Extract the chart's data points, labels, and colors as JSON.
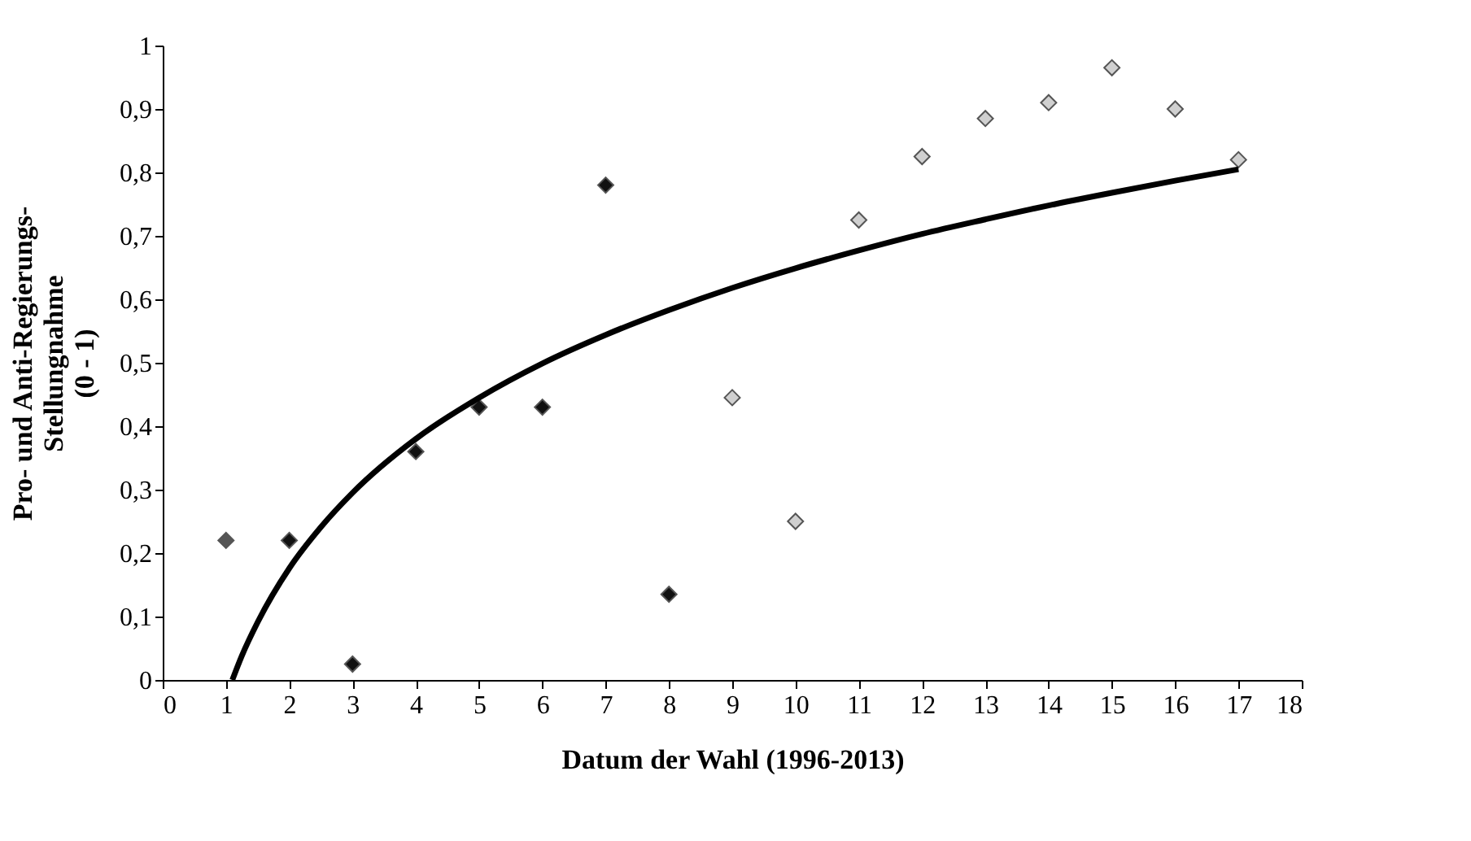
{
  "chart_data": {
    "type": "scatter",
    "xlabel": "Datum der Wahl (1996-2013)",
    "ylabel": "Pro- und Anti-Regierungs-\nStellungnahme\n(0 - 1)",
    "xlim": [
      0,
      18
    ],
    "xticks": [
      0,
      1,
      2,
      3,
      4,
      5,
      6,
      7,
      8,
      9,
      10,
      11,
      12,
      13,
      14,
      15,
      16,
      17,
      18
    ],
    "ylim": [
      0,
      1
    ],
    "yticks": [
      0,
      {
        "value": 0.1,
        "label": "0,1"
      },
      {
        "value": 0.2,
        "label": "0,2"
      },
      {
        "value": 0.3,
        "label": "0,3"
      },
      {
        "value": 0.4,
        "label": "0,4"
      },
      {
        "value": 0.5,
        "label": "0,5"
      },
      {
        "value": 0.6,
        "label": "0,6"
      },
      {
        "value": 0.7,
        "label": "0,7"
      },
      {
        "value": 0.8,
        "label": "0,8"
      },
      {
        "value": 0.9,
        "label": "0,9"
      },
      1
    ],
    "grid": false,
    "marker": "diamond",
    "series": [
      {
        "color": "#555555",
        "x": [
          1
        ],
        "values": [
          0.22
        ]
      },
      {
        "color": "#111111",
        "x": [
          2,
          3,
          4,
          5,
          6,
          7,
          8
        ],
        "values": [
          0.22,
          0.025,
          0.36,
          0.43,
          0.43,
          0.78,
          0.135
        ]
      },
      {
        "color": "#d0d0d0",
        "x": [
          9,
          10,
          11,
          12,
          13,
          14,
          15,
          16,
          17
        ],
        "values": [
          0.445,
          0.25,
          0.725,
          0.825,
          0.885,
          0.91,
          0.965,
          0.9,
          0.82
        ]
      },
      {
        "type": "line",
        "color": "#000000",
        "line_style": "solid",
        "marker": "none",
        "x": [
          1.1,
          1.25,
          1.5,
          2,
          2.5,
          3,
          4,
          5,
          6,
          7,
          8,
          9,
          10,
          11,
          12,
          13,
          14,
          15,
          16,
          17
        ],
        "values": [
          0.0,
          0.038,
          0.091,
          0.176,
          0.241,
          0.295,
          0.38,
          0.445,
          0.499,
          0.544,
          0.583,
          0.618,
          0.649,
          0.677,
          0.703,
          0.726,
          0.748,
          0.768,
          0.787,
          0.805
        ]
      }
    ]
  }
}
